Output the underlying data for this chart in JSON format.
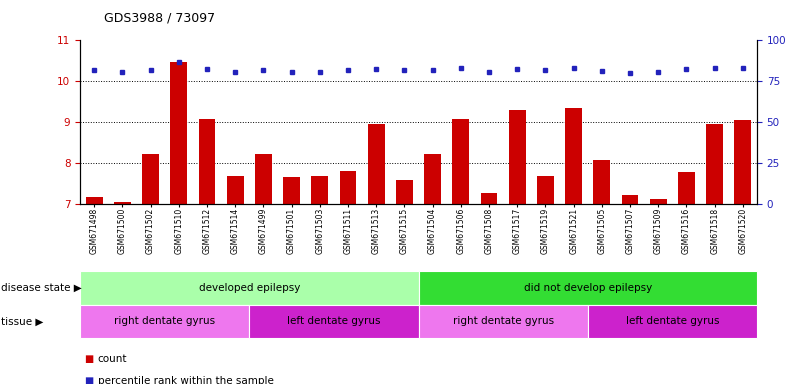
{
  "title": "GDS3988 / 73097",
  "samples": [
    "GSM671498",
    "GSM671500",
    "GSM671502",
    "GSM671510",
    "GSM671512",
    "GSM671514",
    "GSM671499",
    "GSM671501",
    "GSM671503",
    "GSM671511",
    "GSM671513",
    "GSM671515",
    "GSM671504",
    "GSM671506",
    "GSM671508",
    "GSM671517",
    "GSM671519",
    "GSM671521",
    "GSM671505",
    "GSM671507",
    "GSM671509",
    "GSM671516",
    "GSM671518",
    "GSM671520"
  ],
  "bar_values": [
    7.17,
    7.03,
    8.22,
    10.47,
    9.07,
    7.67,
    8.22,
    7.65,
    7.67,
    7.8,
    8.95,
    7.57,
    8.22,
    9.07,
    7.25,
    9.3,
    7.67,
    9.35,
    8.07,
    7.22,
    7.1,
    7.78,
    8.95,
    9.05
  ],
  "percentile_values": [
    10.28,
    10.22,
    10.28,
    10.47,
    10.3,
    10.22,
    10.28,
    10.22,
    10.22,
    10.28,
    10.3,
    10.28,
    10.28,
    10.33,
    10.22,
    10.3,
    10.28,
    10.33,
    10.25,
    10.2,
    10.22,
    10.3,
    10.33,
    10.33
  ],
  "bar_color": "#cc0000",
  "dot_color": "#2222bb",
  "ylim_left": [
    7,
    11
  ],
  "ylim_right": [
    0,
    100
  ],
  "yticks_left": [
    7,
    8,
    9,
    10,
    11
  ],
  "yticks_right": [
    0,
    25,
    50,
    75,
    100
  ],
  "disease_groups": [
    {
      "label": "developed epilepsy",
      "start": 0,
      "end": 12,
      "color": "#aaffaa"
    },
    {
      "label": "did not develop epilepsy",
      "start": 12,
      "end": 24,
      "color": "#33dd33"
    }
  ],
  "tissue_groups": [
    {
      "label": "right dentate gyrus",
      "start": 0,
      "end": 6,
      "color": "#ee77ee"
    },
    {
      "label": "left dentate gyrus",
      "start": 6,
      "end": 12,
      "color": "#cc22cc"
    },
    {
      "label": "right dentate gyrus",
      "start": 12,
      "end": 18,
      "color": "#ee77ee"
    },
    {
      "label": "left dentate gyrus",
      "start": 18,
      "end": 24,
      "color": "#cc22cc"
    }
  ],
  "legend_count_label": "count",
  "legend_pct_label": "percentile rank within the sample",
  "disease_state_label": "disease state",
  "tissue_label": "tissue"
}
